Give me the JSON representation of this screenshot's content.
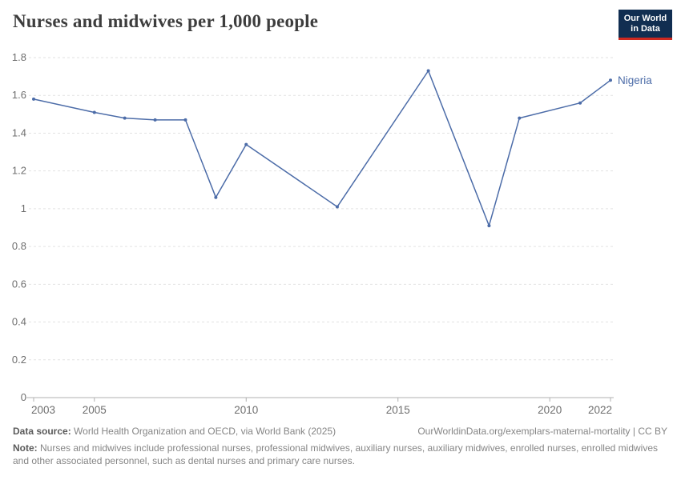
{
  "header": {
    "title": "Nurses and midwives per 1,000 people",
    "logo": {
      "line1": "Our World",
      "line2": "in Data"
    }
  },
  "chart_data": {
    "type": "line",
    "title": "Nurses and midwives per 1,000 people",
    "xlabel": "",
    "ylabel": "",
    "xlim": [
      2003,
      2022
    ],
    "ylim": [
      0,
      1.8
    ],
    "x_ticks": [
      2003,
      2005,
      2010,
      2015,
      2020,
      2022
    ],
    "y_ticks": [
      0,
      0.2,
      0.4,
      0.6,
      0.8,
      1,
      1.2,
      1.4,
      1.6,
      1.8
    ],
    "grid": "horizontal-dashed",
    "legend_position": "end-of-line-label",
    "series": [
      {
        "name": "Nigeria",
        "points": [
          [
            2003,
            1.58
          ],
          [
            2005,
            1.51
          ],
          [
            2006,
            1.48
          ],
          [
            2007,
            1.47
          ],
          [
            2008,
            1.47
          ],
          [
            2009,
            1.06
          ],
          [
            2010,
            1.34
          ],
          [
            2013,
            1.01
          ],
          [
            2016,
            1.73
          ],
          [
            2018,
            0.91
          ],
          [
            2019,
            1.48
          ],
          [
            2021,
            1.56
          ],
          [
            2022,
            1.68
          ]
        ]
      }
    ]
  },
  "footer": {
    "data_source_label": "Data source:",
    "data_source_text": " World Health Organization and OECD, via World Bank (2025)",
    "link_text": "OurWorldinData.org/exemplars-maternal-mortality | CC BY",
    "note_label": "Note:",
    "note_text": " Nurses and midwives include professional nurses, professional midwives, auxiliary nurses, auxiliary midwives, enrolled nurses, enrolled midwives and other associated personnel, such as dental nurses and primary care nurses."
  },
  "colors": {
    "line": "#4C6CA8",
    "grid": "#e2e2e2",
    "axis": "#b0b0b0",
    "tick_text": "#6e6e6e",
    "end_label": "#4C6CA8"
  }
}
